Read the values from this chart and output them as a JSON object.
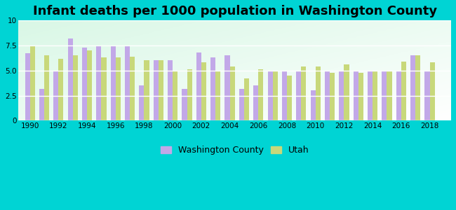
{
  "title": "Infant deaths per 1000 population in Washington County",
  "years": [
    1990,
    1991,
    1992,
    1993,
    1994,
    1995,
    1996,
    1997,
    1998,
    1999,
    2000,
    2001,
    2002,
    2003,
    2004,
    2005,
    2006,
    2007,
    2008,
    2009,
    2010,
    2011,
    2012,
    2013,
    2014,
    2015,
    2016,
    2017,
    2018
  ],
  "washington_county": [
    6.7,
    3.2,
    5.0,
    8.2,
    7.3,
    7.4,
    7.4,
    7.4,
    3.5,
    6.0,
    6.0,
    3.2,
    6.8,
    6.3,
    6.5,
    3.2,
    3.5,
    5.0,
    5.0,
    5.0,
    3.0,
    5.0,
    5.0,
    5.0,
    5.0,
    5.0,
    5.0,
    6.5,
    5.0
  ],
  "utah": [
    7.4,
    6.5,
    6.2,
    6.5,
    7.0,
    6.3,
    6.3,
    6.4,
    6.0,
    6.0,
    5.0,
    5.1,
    5.8,
    5.0,
    5.4,
    4.2,
    5.1,
    5.0,
    4.5,
    5.4,
    5.4,
    4.8,
    5.6,
    4.8,
    5.0,
    5.0,
    5.9,
    6.5,
    5.8
  ],
  "washington_county_color": "#c2a8e8",
  "utah_color": "#c8d87a",
  "background_outer": "#00d4d4",
  "ylim": [
    0,
    10
  ],
  "yticks": [
    0,
    2.5,
    5.0,
    7.5,
    10
  ],
  "title_fontsize": 13,
  "bar_width": 0.35,
  "legend_washington": "Washington County",
  "legend_utah": "Utah"
}
